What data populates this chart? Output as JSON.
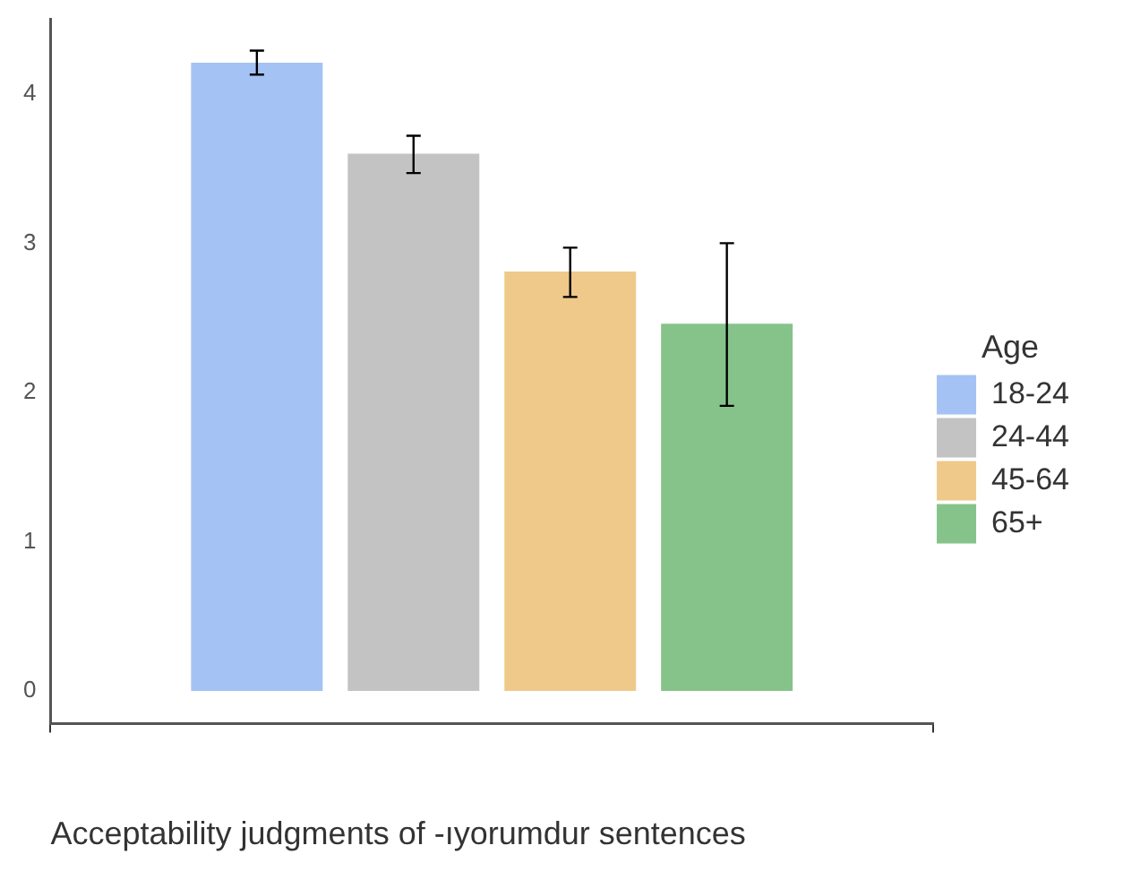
{
  "chart_data": {
    "type": "bar",
    "xlabel": "Acceptability judgments of -ıyorumdur sentences",
    "legend_title": "Age",
    "legend": "right",
    "grid": false,
    "categories": [
      null
    ],
    "series": [
      {
        "name": "18-24",
        "color": "#a4c2f4",
        "values": [
          4.21
        ],
        "errors": [
          [
            4.13,
            4.29
          ]
        ]
      },
      {
        "name": "24-44",
        "color": "#c3c3c3",
        "values": [
          3.6
        ],
        "errors": [
          [
            3.47,
            3.72
          ]
        ]
      },
      {
        "name": "45-64",
        "color": "#efc98a",
        "values": [
          2.81
        ],
        "errors": [
          [
            2.64,
            2.97
          ]
        ]
      },
      {
        "name": "65+",
        "color": "#86c38a",
        "values": [
          2.46
        ],
        "errors": [
          [
            1.91,
            3.0
          ]
        ]
      }
    ],
    "ylim": [
      -0.22,
      4.5
    ],
    "yticks": [
      0,
      1,
      2,
      3,
      4
    ]
  }
}
